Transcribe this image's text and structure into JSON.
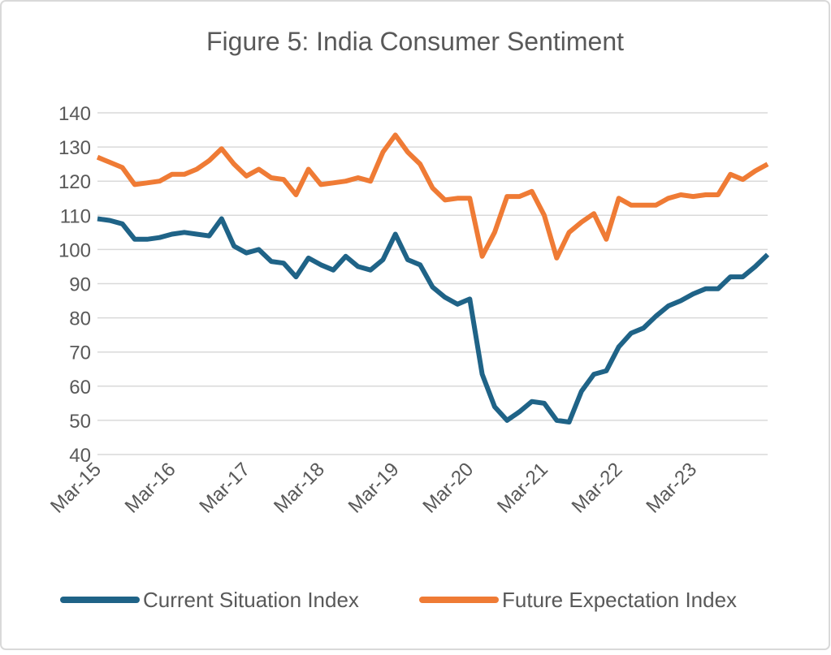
{
  "chart_data": {
    "type": "line",
    "title": "Figure 5: India Consumer Sentiment",
    "categories": [
      "Mar-15",
      null,
      null,
      null,
      null,
      null,
      "Mar-16",
      null,
      null,
      null,
      null,
      null,
      "Mar-17",
      null,
      null,
      null,
      null,
      null,
      "Mar-18",
      null,
      null,
      null,
      null,
      null,
      "Mar-19",
      null,
      null,
      null,
      null,
      null,
      "Mar-20",
      null,
      null,
      null,
      null,
      null,
      "Mar-21",
      null,
      null,
      null,
      null,
      null,
      "Mar-22",
      null,
      null,
      null,
      null,
      null,
      "Mar-23",
      null,
      null,
      null,
      null,
      null,
      null
    ],
    "series": [
      {
        "name": "Current Situation Index",
        "color": "#1f6387",
        "values": [
          109,
          108.5,
          107.5,
          103,
          103,
          103.5,
          104.5,
          105,
          104.5,
          104,
          109,
          101,
          99,
          100,
          96.5,
          96,
          92,
          97.5,
          95.5,
          94,
          98,
          95,
          94,
          97,
          104.5,
          97,
          95.5,
          89,
          86,
          84,
          85.5,
          63.5,
          54,
          50,
          52.5,
          55.5,
          55,
          50,
          49.5,
          58.5,
          63.5,
          64.5,
          71.5,
          75.5,
          77,
          80.5,
          83.5,
          85,
          87,
          88.5,
          88.5,
          92,
          92,
          95,
          98.5
        ]
      },
      {
        "name": "Future Expectation Index",
        "color": "#ef7b35",
        "values": [
          127,
          125.5,
          124,
          119,
          119.5,
          120,
          122,
          122,
          123.5,
          126,
          129.5,
          125,
          121.5,
          123.5,
          121,
          120.5,
          116,
          123.5,
          119,
          119.5,
          120,
          121,
          120,
          128.5,
          133.5,
          128.5,
          125,
          118,
          114.5,
          115,
          115,
          98,
          105,
          115.5,
          115.5,
          117,
          110,
          97.5,
          105,
          108,
          110.5,
          103,
          115,
          113,
          113,
          113,
          115,
          116,
          115.5,
          116,
          116,
          122,
          120.5,
          123,
          125
        ]
      }
    ],
    "ylim": [
      40,
      140
    ],
    "yticks": [
      40,
      50,
      60,
      70,
      80,
      90,
      100,
      110,
      120,
      130,
      140
    ],
    "grid": true,
    "legend": "bottom"
  }
}
